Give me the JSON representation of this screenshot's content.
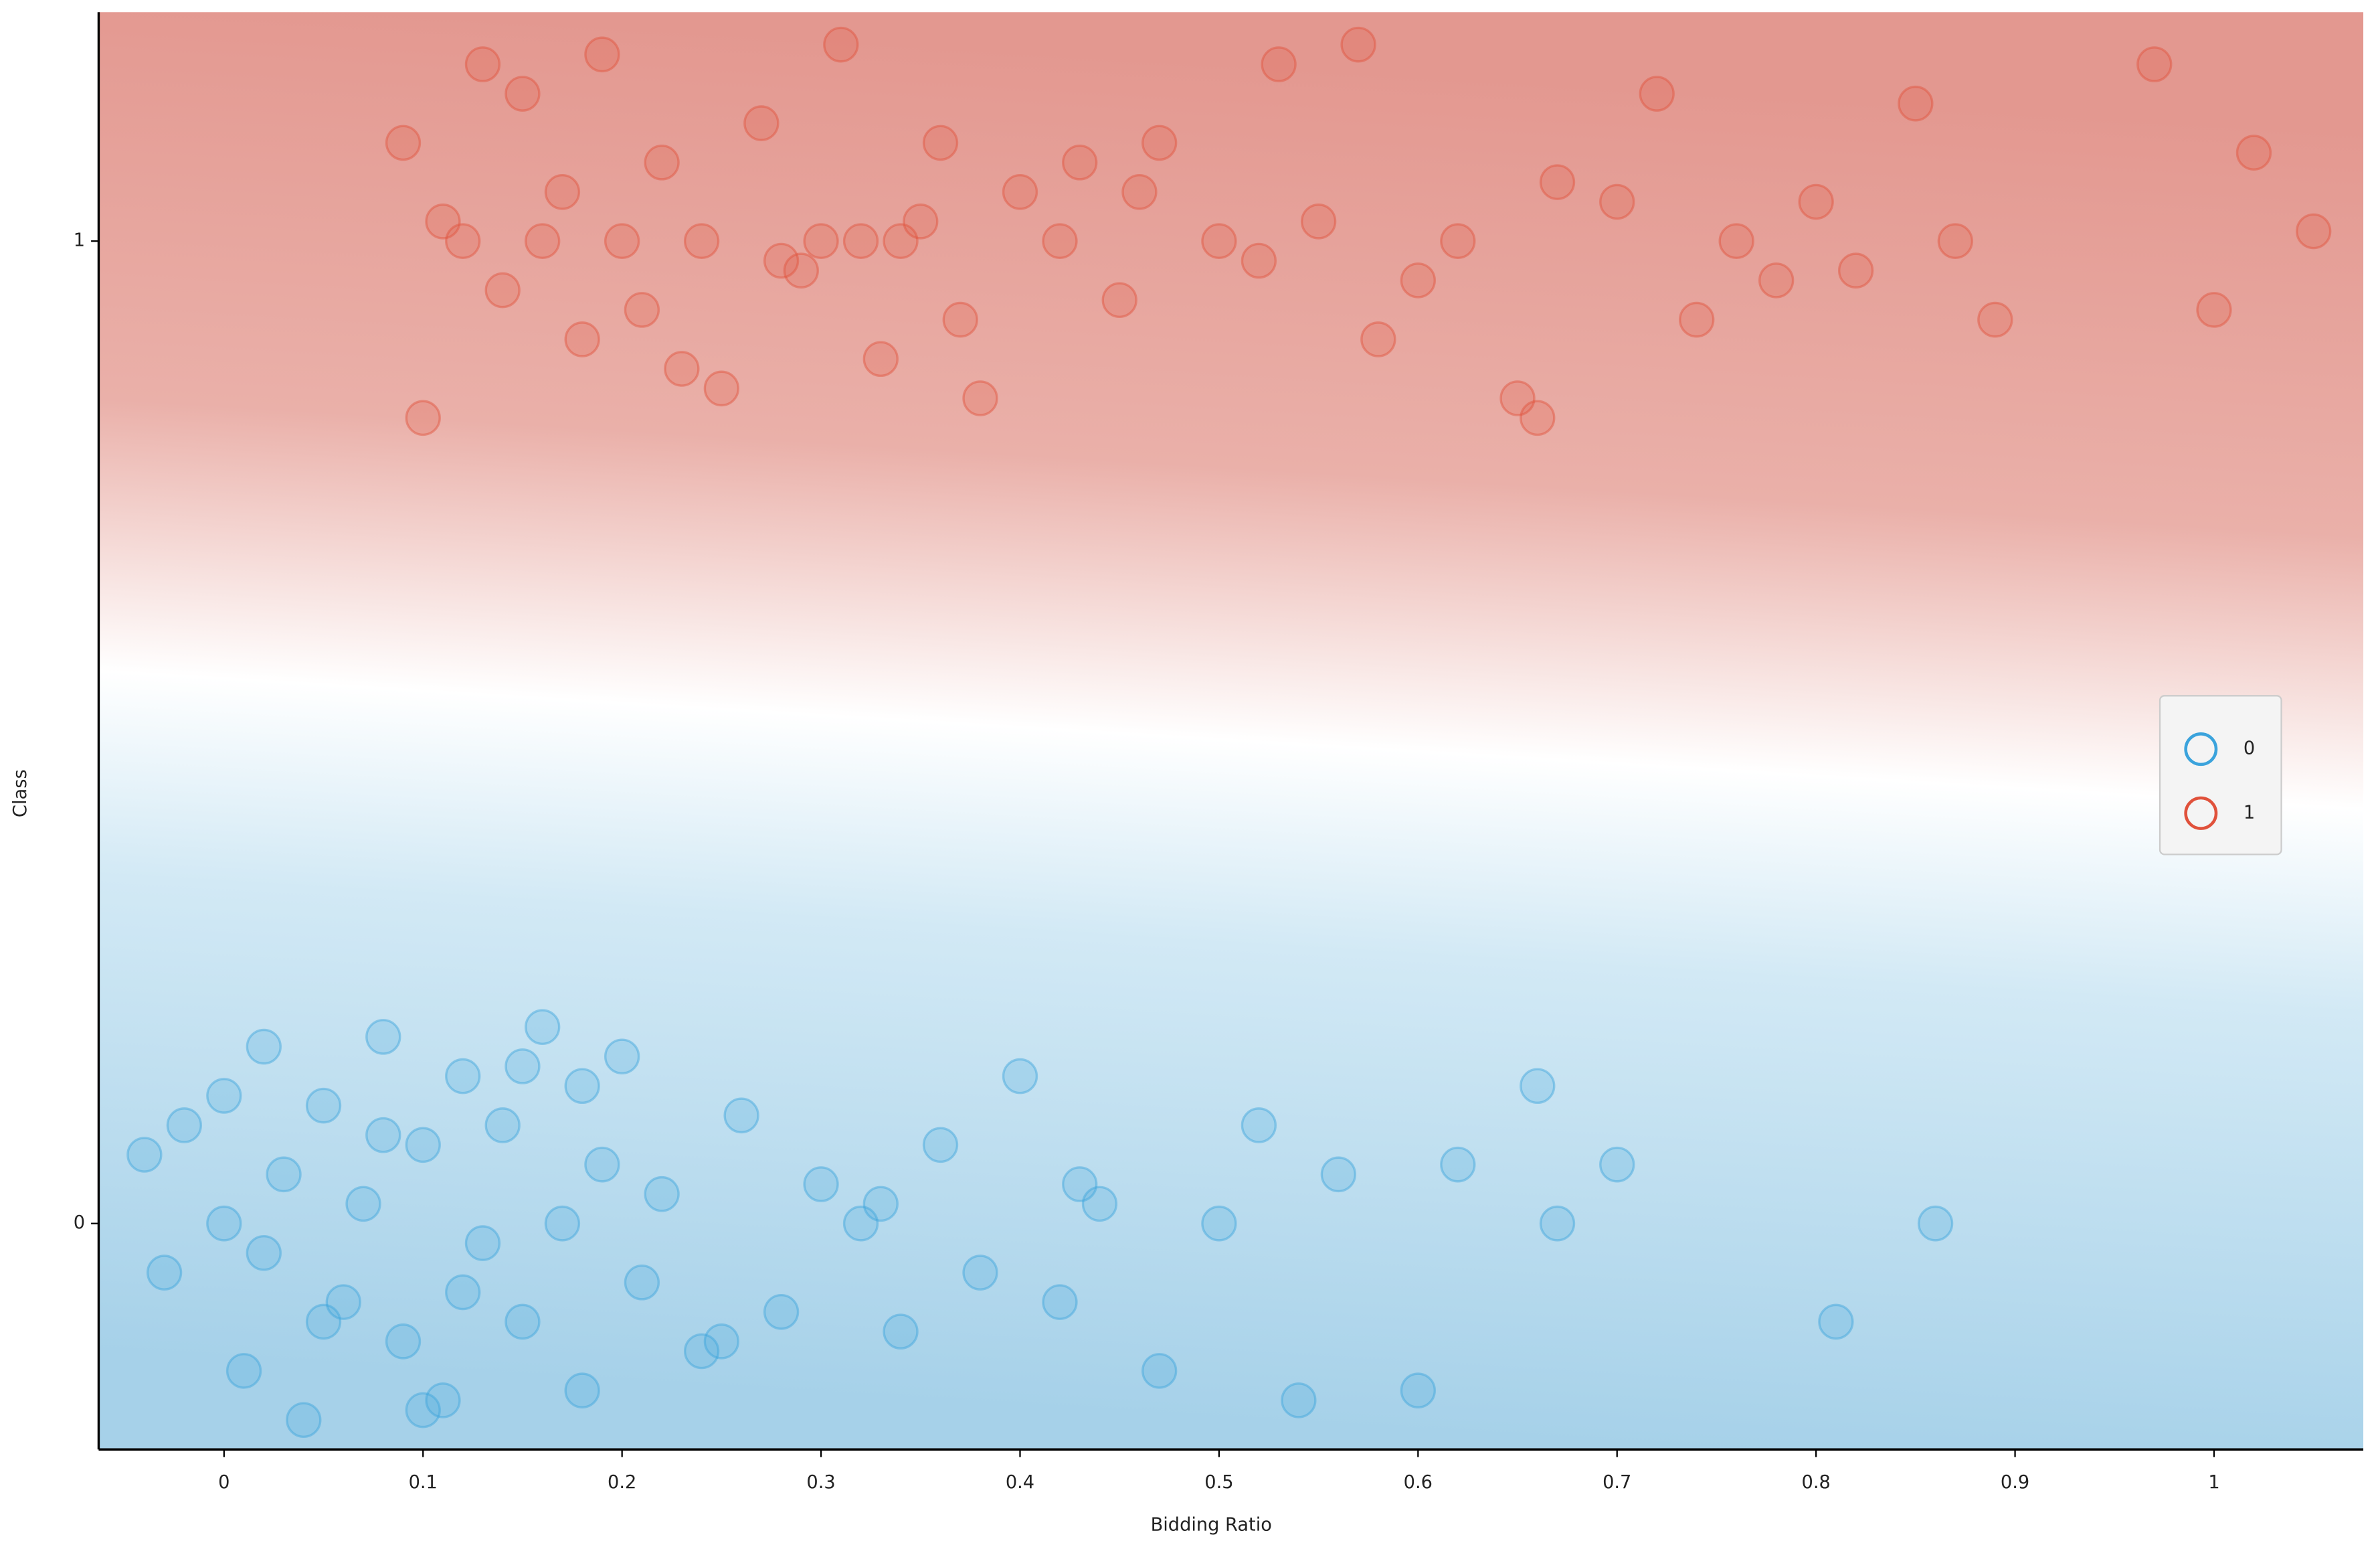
{
  "chart_data": {
    "type": "scatter",
    "x_label": "Bidding Ratio",
    "y_label": "Class",
    "xlim": [
      -0.063,
      1.075
    ],
    "ylim": [
      -0.23,
      1.233
    ],
    "xticks": [
      0,
      0.1,
      0.2,
      0.3,
      0.4,
      0.5,
      0.6,
      0.7,
      0.8,
      0.9,
      1
    ],
    "yticks": [
      0,
      1
    ],
    "legend": "right",
    "series": [
      {
        "name": "0",
        "color": "#3ba3dc",
        "x": [
          -0.04,
          -0.03,
          -0.02,
          0,
          0.01,
          0.02,
          0.03,
          0.04,
          0.05,
          0.06,
          0.07,
          0.08,
          0.09,
          0.1,
          0.11,
          0.12,
          0.13,
          0.14,
          0.15,
          0.16,
          0.17,
          0.18,
          0.19,
          0.2,
          0.21,
          0.22,
          0.24,
          0.26,
          0.28,
          0.3,
          0.32,
          0.34,
          0.36,
          0.38,
          0.4,
          0.42,
          0.44,
          0.47,
          0.5,
          0.52,
          0.54,
          0.56,
          0.6,
          0.62,
          0.66,
          0.67,
          0.7,
          0.81,
          0.86,
          0.0,
          0.05,
          0.1,
          0.15,
          0.02,
          0.08,
          0.12,
          0.18,
          0.25,
          0.33,
          0.43
        ],
        "values": [
          0.07,
          -0.05,
          0.1,
          0.0,
          -0.15,
          0.18,
          0.05,
          -0.2,
          0.12,
          -0.08,
          0.02,
          0.19,
          -0.12,
          0.08,
          -0.18,
          0.15,
          -0.02,
          0.1,
          -0.1,
          0.2,
          0.0,
          -0.17,
          0.06,
          0.17,
          -0.06,
          0.03,
          -0.13,
          0.11,
          -0.09,
          0.04,
          0.0,
          -0.11,
          0.08,
          -0.05,
          0.15,
          -0.08,
          0.02,
          -0.15,
          0.0,
          0.1,
          -0.18,
          0.05,
          -0.17,
          0.06,
          0.14,
          0.0,
          0.06,
          -0.1,
          0.0,
          0.13,
          -0.1,
          -0.19,
          0.16,
          -0.03,
          0.09,
          -0.07,
          0.14,
          -0.12,
          0.02,
          0.04
        ]
      },
      {
        "name": "1",
        "color": "#e0513b",
        "x": [
          0.09,
          0.1,
          0.12,
          0.14,
          0.15,
          0.16,
          0.17,
          0.18,
          0.19,
          0.2,
          0.21,
          0.22,
          0.24,
          0.25,
          0.27,
          0.28,
          0.3,
          0.31,
          0.32,
          0.33,
          0.35,
          0.36,
          0.37,
          0.38,
          0.4,
          0.42,
          0.43,
          0.45,
          0.47,
          0.5,
          0.52,
          0.53,
          0.55,
          0.57,
          0.6,
          0.62,
          0.65,
          0.67,
          0.7,
          0.72,
          0.74,
          0.76,
          0.78,
          0.8,
          0.82,
          0.85,
          0.87,
          0.89,
          0.97,
          1.0,
          1.02,
          1.05,
          0.13,
          0.23,
          0.34,
          0.46,
          0.58,
          0.11,
          0.29,
          0.66
        ],
        "values": [
          1.1,
          0.82,
          1.0,
          0.95,
          1.15,
          1.0,
          1.05,
          0.9,
          1.19,
          1.0,
          0.93,
          1.08,
          1.0,
          0.85,
          1.12,
          0.98,
          1.0,
          1.2,
          1.0,
          0.88,
          1.02,
          1.1,
          0.92,
          0.84,
          1.05,
          1.0,
          1.08,
          0.94,
          1.1,
          1.0,
          0.98,
          1.18,
          1.02,
          1.2,
          0.96,
          1.0,
          0.84,
          1.06,
          1.04,
          1.15,
          0.92,
          1.0,
          0.96,
          1.04,
          0.97,
          1.14,
          1.0,
          0.92,
          1.18,
          0.93,
          1.09,
          1.01,
          1.18,
          0.87,
          1.0,
          1.05,
          0.9,
          1.02,
          0.97,
          0.82
        ]
      }
    ]
  }
}
